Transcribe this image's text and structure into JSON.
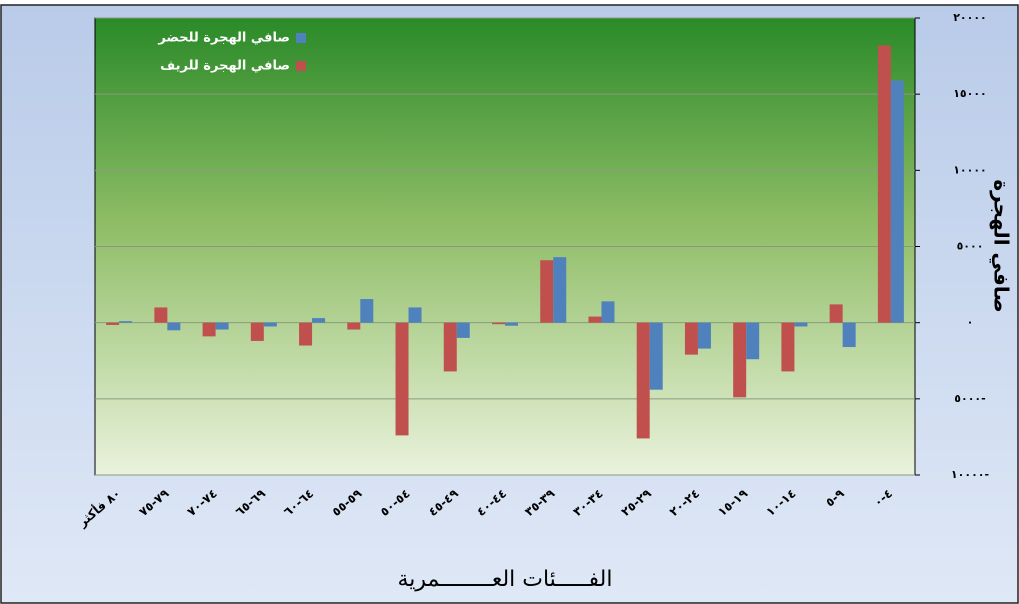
{
  "chart_data": {
    "type": "bar",
    "categories": [
      "٨٠ فأكثر",
      "٧٩-٧٥",
      "٧٤-٧٠",
      "٦٩-٦٥",
      "٦٤-٦٠",
      "٥٩-٥٥",
      "٥٤-٥٠",
      "٤٩-٤٥",
      "٤٤-٤٠",
      "٣٩-٣٥",
      "٣٤-٣٠",
      "٢٩-٢٥",
      "٢٤-٢٠",
      "١٩-١٥",
      "١٤-١٠",
      "٩-٥",
      "٤-٠"
    ],
    "series": [
      {
        "name": "صافي الهجرة للريف",
        "color": "#c0504d",
        "values": [
          -150,
          1000,
          -900,
          -1200,
          -1500,
          -450,
          -7400,
          -3200,
          -100,
          4100,
          400,
          -7600,
          -2100,
          -4900,
          -3200,
          1200,
          18200
        ]
      },
      {
        "name": "صافي الهجرة للحضر",
        "color": "#4f81bd",
        "values": [
          100,
          -500,
          -450,
          -250,
          300,
          1550,
          1000,
          -1000,
          -200,
          4300,
          1400,
          -4400,
          -1700,
          -2400,
          -250,
          -1600,
          15900
        ]
      }
    ],
    "ylim": [
      -10000,
      20000
    ],
    "yticks": [
      {
        "value": -10000,
        "label": "١٠٠٠٠-"
      },
      {
        "value": -5000,
        "label": "٥٠٠٠-"
      },
      {
        "value": 0,
        "label": "٠"
      },
      {
        "value": 5000,
        "label": "٥٠٠٠"
      },
      {
        "value": 10000,
        "label": "١٠٠٠٠"
      },
      {
        "value": 15000,
        "label": "١٥٠٠٠"
      },
      {
        "value": 20000,
        "label": "٢٠٠٠٠"
      }
    ],
    "y_label": "صافي الهجرة",
    "x_label": "الفـــــئات العــــــــمرية",
    "grid": true,
    "legend": "top-left"
  }
}
